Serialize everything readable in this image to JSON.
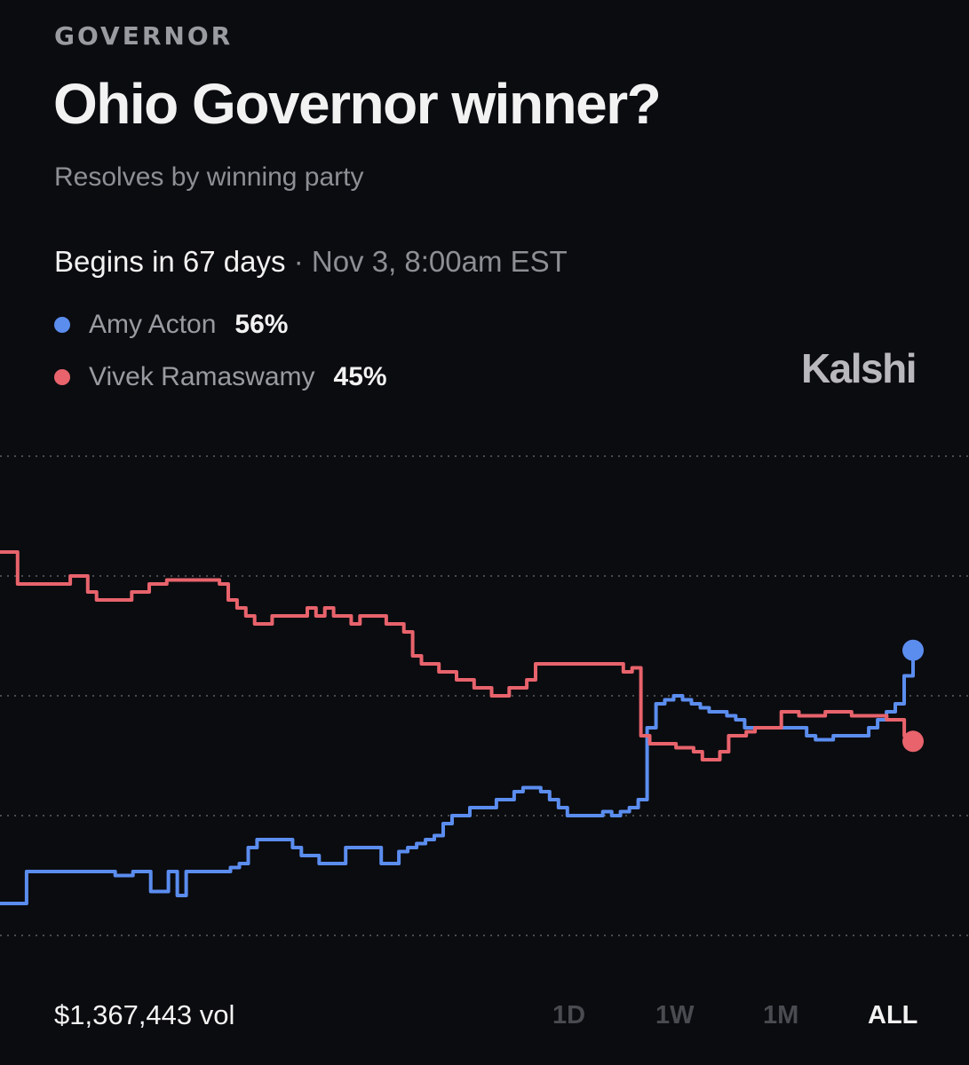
{
  "header": {
    "category": "GOVERNOR",
    "title": "Ohio Governor winner?",
    "subtitle": "Resolves by winning party"
  },
  "schedule": {
    "begins": "Begins in 67 days",
    "separator": "·",
    "date": "Nov 3, 8:00am EST"
  },
  "legend": [
    {
      "name": "Amy Acton",
      "percent": "56%",
      "color": "#5b8def"
    },
    {
      "name": "Vivek Ramaswamy",
      "percent": "45%",
      "color": "#e8636c"
    }
  ],
  "brand": "Kalshi",
  "footer": {
    "volume": "$1,367,443 vol",
    "ranges": [
      "1D",
      "1W",
      "1M",
      "ALL"
    ],
    "selected_range": "ALL"
  },
  "chart_data": {
    "type": "line",
    "title": "",
    "xlabel": "",
    "ylabel": "",
    "grid": "dotted horizontal",
    "ylim": [
      20,
      80
    ],
    "series": [
      {
        "name": "Amy Acton",
        "color": "#5b8def",
        "values": [
          24,
          24,
          24,
          28,
          28,
          28,
          28,
          28,
          28,
          28,
          28,
          28,
          28,
          27.5,
          27.5,
          28,
          28,
          25.5,
          25.5,
          28,
          25,
          28,
          28,
          28,
          28,
          28,
          28.5,
          29,
          31,
          32,
          32,
          32,
          32,
          31,
          30,
          30,
          29,
          29,
          29,
          31,
          31,
          31,
          31,
          29,
          29,
          30.5,
          31,
          31.5,
          32,
          32.5,
          34,
          35,
          35,
          36,
          36,
          36,
          37,
          37,
          38,
          38.5,
          38.5,
          38,
          37,
          36,
          35,
          35,
          35,
          35,
          35.5,
          35,
          35.5,
          36,
          37,
          46,
          49,
          49.5,
          50,
          49.5,
          49,
          48.5,
          48,
          48,
          47.5,
          47,
          46,
          46,
          46,
          46,
          46,
          46,
          46,
          45,
          44.5,
          44.5,
          45,
          45,
          45,
          45,
          46,
          47,
          48,
          49,
          52.5,
          55.7
        ]
      },
      {
        "name": "Vivek Ramaswamy",
        "color": "#e8636c",
        "values": [
          68,
          68,
          64,
          64,
          64,
          64,
          64,
          64,
          65,
          65,
          63,
          62,
          62,
          62,
          62,
          63,
          63,
          64,
          64,
          64.5,
          64.5,
          64.5,
          64.5,
          64.5,
          64.5,
          64,
          62,
          61,
          60,
          59,
          59,
          60,
          60,
          60,
          60,
          61,
          60,
          61,
          60,
          60,
          59,
          60,
          60,
          60,
          59,
          59,
          58,
          55,
          54,
          54,
          53,
          53,
          52,
          52,
          51,
          51,
          50,
          50,
          51,
          51,
          52,
          54,
          54,
          54,
          54,
          54,
          54,
          54,
          54,
          54,
          54,
          53,
          53.5,
          45,
          44,
          44,
          44,
          43.5,
          43.5,
          43,
          42,
          42,
          43,
          45,
          45,
          45.5,
          46,
          46,
          46,
          48,
          48,
          47.5,
          47.5,
          47.5,
          48,
          48,
          48,
          47.5,
          47.5,
          47.5,
          47.5,
          47,
          47,
          45,
          44.3
        ]
      }
    ]
  }
}
